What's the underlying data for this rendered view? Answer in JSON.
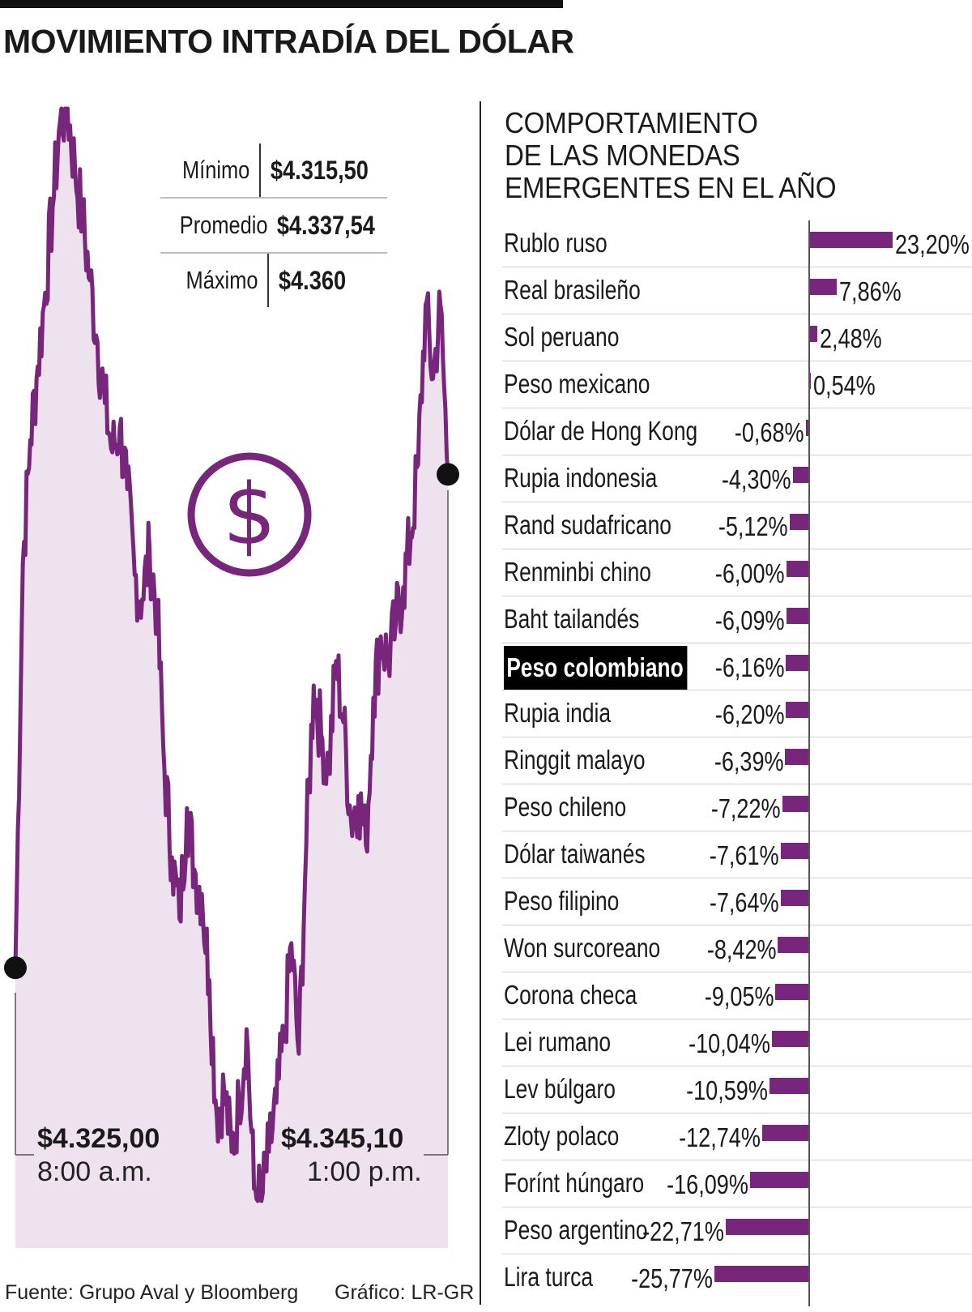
{
  "header": {
    "title": "MOVIMIENTO INTRADÍA DEL DÓLAR"
  },
  "stats": [
    {
      "label": "Mínimo",
      "value": "$4.315,50"
    },
    {
      "label": "Promedio",
      "value": "$4.337,54"
    },
    {
      "label": "Máximo",
      "value": "$4.360"
    }
  ],
  "icon": {
    "name": "dollar-coin-icon",
    "color": "#77267b"
  },
  "colors": {
    "line": "#77267b",
    "area": "#eee2ee",
    "bar": "#77267b",
    "highlight_bg": "#000000"
  },
  "open": {
    "value": "$4.325,00",
    "time": "8:00 a.m."
  },
  "close": {
    "value": "$4.345,10",
    "time": "1:00 p.m."
  },
  "subtitle": [
    "COMPORTAMIENTO",
    "DE LAS MONEDAS",
    "EMERGENTES EN EL AÑO"
  ],
  "footer": {
    "source": "Fuente: Grupo Aval y Bloomberg",
    "credit": "Gráfico: LR-GR"
  },
  "chart_data": [
    {
      "type": "line",
      "title": "",
      "xlabel": "",
      "ylabel": "",
      "x_range": [
        "8:00 a.m.",
        "1:00 p.m."
      ],
      "ylim": [
        4315.5,
        4360
      ],
      "y_start": 4325.0,
      "y_end": 4345.1,
      "y_min": 4315.5,
      "y_max": 4360,
      "y_mean": 4337.54,
      "y": [
        4325.0,
        4341.5,
        4346.5,
        4349.5,
        4352.5,
        4356.0,
        4359.5,
        4360.0,
        4357.5,
        4355.5,
        4353.0,
        4350.5,
        4348.0,
        4346.0,
        4347.0,
        4344.5,
        4341.0,
        4340.0,
        4342.0,
        4339.5,
        4333.0,
        4329.5,
        4327.0,
        4331.5,
        4329.0,
        4328.0,
        4324.5,
        4319.0,
        4320.0,
        4317.5,
        4319.5,
        4322.5,
        4316.0,
        4315.5,
        4317.5,
        4319.5,
        4322.0,
        4326.0,
        4321.5,
        4330.0,
        4336.5,
        4334.5,
        4333.0,
        4337.5,
        4335.0,
        4331.0,
        4332.0,
        4330.0,
        4336.0,
        4338.5,
        4337.5,
        4339.0,
        4340.5,
        4342.5,
        4345.5,
        4352.0,
        4349.0,
        4352.0,
        4345.1
      ]
    },
    {
      "type": "bar",
      "title": "COMPORTAMIENTO DE LAS MONEDAS EMERGENTES EN EL AÑO",
      "unit": "%",
      "highlight": "Peso colombiano",
      "categories": [
        "Rublo ruso",
        "Real brasileño",
        "Sol peruano",
        "Peso mexicano",
        "Dólar de Hong Kong",
        "Rupia indonesia",
        "Rand sudafricano",
        "Renminbi chino",
        "Baht tailandés",
        "Peso colombiano",
        "Rupia india",
        "Ringgit malayo",
        "Peso chileno",
        "Dólar taiwanés",
        "Peso filipino",
        "Won surcoreano",
        "Corona checa",
        "Lei rumano",
        "Lev búlgaro",
        "Zloty polaco",
        "Forínt húngaro",
        "Peso argentino",
        "Lira turca"
      ],
      "values": [
        23.2,
        7.86,
        2.48,
        0.54,
        -0.68,
        -4.3,
        -5.12,
        -6.0,
        -6.09,
        -6.16,
        -6.2,
        -6.39,
        -7.22,
        -7.61,
        -7.64,
        -8.42,
        -9.05,
        -10.04,
        -10.59,
        -12.74,
        -16.09,
        -22.71,
        -25.77
      ],
      "labels": [
        "23,20%",
        "7,86%",
        "2,48%",
        "0,54%",
        "-0,68%",
        "-4,30%",
        "-5,12%",
        "-6,00%",
        "-6,09%",
        "-6,16%",
        "-6,20%",
        "-6,39%",
        "-7,22%",
        "-7,61%",
        "-7,64%",
        "-8,42%",
        "-9,05%",
        "-10,04%",
        "-10,59%",
        "-12,74%",
        "-16,09%",
        "-22,71%",
        "-25,77%"
      ]
    }
  ]
}
